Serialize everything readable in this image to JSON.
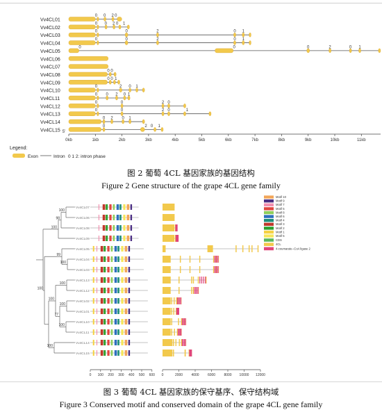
{
  "figure2": {
    "genes": [
      {
        "name": "Vv4CL01",
        "line_end": 1.99,
        "exons": [
          [
            0,
            1.0
          ],
          [
            1.06,
            1.12
          ],
          [
            1.32,
            1.4
          ],
          [
            1.62,
            1.7
          ],
          [
            1.82,
            1.99
          ]
        ],
        "phases": [
          [
            1.03,
            "0"
          ],
          [
            1.35,
            "0"
          ],
          [
            1.65,
            "2"
          ],
          [
            1.77,
            "0"
          ]
        ]
      },
      {
        "name": "Vv4CL02",
        "line_end": 2.28,
        "exons": [
          [
            0,
            1.0
          ],
          [
            1.06,
            1.12
          ],
          [
            1.36,
            1.44
          ],
          [
            1.66,
            1.74
          ],
          [
            1.88,
            1.96
          ],
          [
            2.2,
            2.28
          ]
        ],
        "phases": [
          [
            1.03,
            "0"
          ],
          [
            1.39,
            "0"
          ],
          [
            1.69,
            "2"
          ],
          [
            1.82,
            "0"
          ],
          [
            2.08,
            "1"
          ]
        ]
      },
      {
        "name": "Vv4CL03",
        "line_end": 6.85,
        "exons": [
          [
            0,
            1.0
          ],
          [
            1.06,
            1.12
          ],
          [
            2.12,
            2.22
          ],
          [
            3.3,
            3.38
          ],
          [
            6.2,
            6.28
          ],
          [
            6.52,
            6.6
          ],
          [
            6.78,
            6.85
          ]
        ],
        "phases": [
          [
            1.03,
            "0"
          ],
          [
            2.17,
            "0"
          ],
          [
            3.34,
            "2"
          ],
          [
            6.24,
            "0"
          ],
          [
            6.56,
            "1"
          ]
        ]
      },
      {
        "name": "Vv4CL04",
        "line_end": 6.85,
        "exons": [
          [
            0,
            1.0
          ],
          [
            1.06,
            1.12
          ],
          [
            2.12,
            2.22
          ],
          [
            3.3,
            3.38
          ],
          [
            6.2,
            6.28
          ],
          [
            6.52,
            6.6
          ],
          [
            6.78,
            6.85
          ]
        ],
        "phases": [
          [
            1.03,
            "0"
          ],
          [
            2.17,
            "0"
          ],
          [
            3.34,
            "2"
          ],
          [
            6.24,
            "0"
          ],
          [
            6.56,
            "1"
          ]
        ]
      },
      {
        "name": "Vv4CL05",
        "line_end": 11.72,
        "exons": [
          [
            0,
            0.38
          ],
          [
            5.5,
            6.18
          ],
          [
            8.95,
            9.05
          ],
          [
            9.78,
            9.86
          ],
          [
            10.55,
            10.63
          ],
          [
            10.9,
            10.98
          ],
          [
            11.64,
            11.72
          ]
        ],
        "phases": [
          [
            0.42,
            "0"
          ],
          [
            6.22,
            "0"
          ],
          [
            9.0,
            "0"
          ],
          [
            9.82,
            "2"
          ],
          [
            10.59,
            "0"
          ],
          [
            10.94,
            "1"
          ]
        ]
      },
      {
        "name": "Vv4CL06",
        "line_end": 1.48,
        "exons": [
          [
            0,
            1.48
          ]
        ],
        "phases": []
      },
      {
        "name": "Vv4CL07",
        "line_end": 1.48,
        "exons": [
          [
            0,
            1.48
          ]
        ],
        "phases": []
      },
      {
        "name": "Vv4CL08",
        "line_end": 1.78,
        "exons": [
          [
            0,
            1.45
          ],
          [
            1.52,
            1.6
          ],
          [
            1.7,
            1.78
          ]
        ],
        "phases": [
          [
            1.49,
            "0"
          ],
          [
            1.62,
            "0"
          ]
        ]
      },
      {
        "name": "Vv4CL09",
        "line_end": 1.92,
        "exons": [
          [
            0,
            1.45
          ],
          [
            1.52,
            1.6
          ],
          [
            1.68,
            1.76
          ],
          [
            1.84,
            1.92
          ]
        ],
        "phases": [
          [
            1.49,
            "0"
          ],
          [
            1.62,
            "0"
          ],
          [
            1.77,
            "1"
          ]
        ]
      },
      {
        "name": "Vv4CL10",
        "line_end": 2.85,
        "exons": [
          [
            0,
            1.0
          ],
          [
            1.06,
            1.12
          ],
          [
            1.9,
            2.0
          ],
          [
            2.26,
            2.34
          ],
          [
            2.52,
            2.6
          ],
          [
            2.77,
            2.85
          ]
        ],
        "phases": [
          [
            1.03,
            "0"
          ],
          [
            1.95,
            "2"
          ],
          [
            2.3,
            "0"
          ],
          [
            2.56,
            "1"
          ]
        ]
      },
      {
        "name": "Vv4CL11",
        "line_end": 2.3,
        "exons": [
          [
            0,
            1.0
          ],
          [
            1.06,
            1.12
          ],
          [
            1.4,
            1.48
          ],
          [
            1.76,
            1.84
          ],
          [
            2.06,
            2.14
          ],
          [
            2.22,
            2.3
          ]
        ],
        "phases": [
          [
            1.03,
            "0"
          ],
          [
            1.44,
            "0"
          ],
          [
            1.8,
            "2"
          ],
          [
            2.1,
            "0"
          ],
          [
            2.26,
            "1"
          ]
        ]
      },
      {
        "name": "Vv4CL12",
        "line_end": 4.4,
        "exons": [
          [
            0,
            1.0
          ],
          [
            1.06,
            1.12
          ],
          [
            1.96,
            2.04
          ],
          [
            3.5,
            3.58
          ],
          [
            3.72,
            3.8
          ],
          [
            4.32,
            4.4
          ]
        ],
        "phases": [
          [
            1.03,
            "0"
          ],
          [
            2.0,
            "0"
          ],
          [
            3.54,
            "2"
          ],
          [
            3.76,
            "0"
          ]
        ]
      },
      {
        "name": "Vv4CL13",
        "line_end": 5.35,
        "exons": [
          [
            0,
            1.0
          ],
          [
            1.06,
            1.12
          ],
          [
            1.96,
            2.04
          ],
          [
            3.5,
            3.58
          ],
          [
            3.72,
            3.8
          ],
          [
            4.32,
            4.4
          ],
          [
            5.27,
            5.35
          ]
        ],
        "phases": [
          [
            1.03,
            "0"
          ],
          [
            2.0,
            "0"
          ],
          [
            3.54,
            "2"
          ],
          [
            3.76,
            "0"
          ],
          [
            4.45,
            "1"
          ]
        ]
      },
      {
        "name": "Vv4CL14",
        "line_end": 2.85,
        "exons": [
          [
            0,
            1.22
          ],
          [
            1.28,
            1.36
          ],
          [
            1.58,
            1.66
          ],
          [
            2.0,
            2.08
          ],
          [
            2.26,
            2.34
          ],
          [
            2.77,
            2.85
          ]
        ],
        "phases": [
          [
            1.32,
            "0"
          ],
          [
            1.62,
            "2"
          ],
          [
            2.04,
            "0"
          ],
          [
            2.3,
            "1"
          ]
        ]
      },
      {
        "name": "Vv4CL15",
        "line_end": 3.55,
        "exons": [
          [
            0,
            1.22
          ],
          [
            1.28,
            1.36
          ],
          [
            2.7,
            2.85
          ],
          [
            3.2,
            3.28
          ],
          [
            3.47,
            3.55
          ]
        ],
        "phases": [
          [
            1.32,
            "0"
          ],
          [
            2.9,
            "2"
          ],
          [
            3.12,
            "0"
          ],
          [
            3.4,
            "1"
          ]
        ]
      }
    ],
    "axis_ticks": [
      "0kb",
      "1kb",
      "2kb",
      "3kb",
      "4kb",
      "5kb",
      "6kb",
      "7kb",
      "8kb",
      "9kb",
      "10kb",
      "11kb"
    ],
    "axis_start_label": "5'",
    "legend_title": "Legend:",
    "legend_exon": "Exon",
    "legend_intron": "Intron",
    "legend_phase": "0 1 2: intron phase",
    "exon_color": "#f2c94c",
    "caption_cn": "图 2   葡萄 4CL 基因家族的基因结构",
    "caption_en": "Figure 2 Gene structure of the grape 4CL gene family"
  },
  "figure3": {
    "leaves": [
      "Vv4CL07",
      "Vv4CL06",
      "Vv4CL08",
      "Vv4CL09",
      "Vv4CL05",
      "Vv4CL04",
      "Vv4CL03",
      "Vv4CL13",
      "Vv4CL12",
      "Vv4CL02",
      "Vv4CL01",
      "Vv4CL10",
      "Vv4CL11",
      "Vv4CL14",
      "Vv4CL15"
    ],
    "bootstrap": [
      "100",
      "98",
      "100",
      "100",
      "99",
      "100",
      "100",
      "100",
      "77",
      "100",
      "100",
      "100"
    ],
    "motif_legend": [
      "Motif 10",
      "Motif 9",
      "Motif 7",
      "Motif 5",
      "Motif 8",
      "Motif 6",
      "Motif 4",
      "Motif 3",
      "Motif 2",
      "Motif 1",
      "Motif 5"
    ],
    "motif_colors": [
      "#f2a65a",
      "#4b2e83",
      "#f28fb0",
      "#e0463e",
      "#8fce5a",
      "#2e6fbe",
      "#1f8f7a",
      "#c0392b",
      "#2ca02c",
      "#f5d142",
      "#f7e65a"
    ],
    "domain_legend": [
      "CDS",
      "4CL",
      "4-coumarate--CoA ligase 2"
    ],
    "domain_colors": [
      "#5cb85c",
      "#f2c94c",
      "#e0457b"
    ],
    "motif_axis": [
      "0",
      "100",
      "200",
      "300",
      "400",
      "500",
      "600"
    ],
    "domain_axis": [
      "0",
      "2000",
      "4000",
      "6000",
      "8000",
      "10000",
      "12000"
    ],
    "caption_cn": "图 3   葡萄 4CL 基因家族的保守基序、保守结构域",
    "caption_en": "Figure 3 Conserved motif and conserved domain of the grape 4CL gene family"
  }
}
